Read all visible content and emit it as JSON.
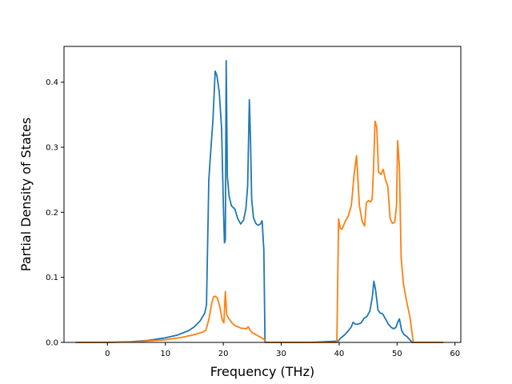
{
  "chart_data": {
    "type": "line",
    "title": "",
    "xlabel": "Frequency (THz)",
    "ylabel": "Partial Density of States",
    "xlim": [
      -7.5,
      61
    ],
    "ylim": [
      0,
      0.455
    ],
    "grid": false,
    "xticks": [
      0,
      10,
      20,
      30,
      40,
      50,
      60
    ],
    "yticks": [
      0.0,
      0.1,
      0.2,
      0.3,
      0.4
    ],
    "ytick_labels": [
      "0.0",
      "0.1",
      "0.2",
      "0.3",
      "0.4"
    ],
    "colors": {
      "series_1": "#1f77b4",
      "series_2": "#ff7f0e"
    },
    "series": [
      {
        "color": "#1f77b4",
        "x": [
          -5.5,
          0,
          4,
          7,
          10,
          12,
          14,
          15,
          16,
          16.8,
          17.1,
          17.5,
          17.8,
          18.2,
          18.6,
          18.9,
          19.3,
          19.7,
          20.0,
          20.2,
          20.35,
          20.5,
          20.7,
          21.0,
          21.4,
          22.0,
          22.5,
          23.0,
          23.5,
          23.9,
          24.2,
          24.5,
          24.7,
          24.9,
          25.2,
          25.6,
          26.0,
          26.4,
          26.7,
          27.0,
          27.2,
          30,
          35,
          39.8,
          40.3,
          41.0,
          41.6,
          42.1,
          42.4,
          42.8,
          43.3,
          43.8,
          44.3,
          44.8,
          45.3,
          45.7,
          46.0,
          46.3,
          46.7,
          47.1,
          47.5,
          48.0,
          48.5,
          49.0,
          49.4,
          49.8,
          50.1,
          50.4,
          50.8,
          51.2,
          51.7,
          52.2,
          52.6,
          58
        ],
        "y": [
          0.0,
          0.0,
          0.001,
          0.003,
          0.007,
          0.011,
          0.018,
          0.024,
          0.033,
          0.045,
          0.058,
          0.25,
          0.29,
          0.34,
          0.417,
          0.41,
          0.385,
          0.33,
          0.215,
          0.153,
          0.158,
          0.433,
          0.255,
          0.225,
          0.21,
          0.205,
          0.19,
          0.182,
          0.188,
          0.205,
          0.24,
          0.373,
          0.31,
          0.22,
          0.192,
          0.183,
          0.18,
          0.182,
          0.187,
          0.142,
          0.0,
          0.0,
          0.0,
          0.002,
          0.007,
          0.012,
          0.018,
          0.024,
          0.031,
          0.028,
          0.028,
          0.03,
          0.037,
          0.04,
          0.048,
          0.068,
          0.094,
          0.08,
          0.05,
          0.045,
          0.044,
          0.036,
          0.028,
          0.023,
          0.021,
          0.023,
          0.031,
          0.036,
          0.018,
          0.012,
          0.009,
          0.004,
          0.0,
          0.0
        ]
      },
      {
        "color": "#ff7f0e",
        "x": [
          -5.5,
          0,
          5,
          10,
          13,
          15,
          16.5,
          17.0,
          17.5,
          18.0,
          18.3,
          18.6,
          19.0,
          19.4,
          19.8,
          20.1,
          20.35,
          20.6,
          21.0,
          21.5,
          22,
          23,
          24.0,
          24.3,
          24.6,
          25.0,
          26,
          27,
          27.4,
          30,
          35,
          39.6,
          39.9,
          40.2,
          40.5,
          41.0,
          41.6,
          42.1,
          42.6,
          43.0,
          43.5,
          44.0,
          44.4,
          44.7,
          45.1,
          45.4,
          45.7,
          45.9,
          46.2,
          46.5,
          46.8,
          47.2,
          47.6,
          48.0,
          48.4,
          48.8,
          49.2,
          49.6,
          49.9,
          50.1,
          50.4,
          50.7,
          51.1,
          51.6,
          52.2,
          52.8,
          58
        ],
        "y": [
          0.0,
          0.0,
          0.001,
          0.004,
          0.008,
          0.012,
          0.016,
          0.019,
          0.035,
          0.06,
          0.07,
          0.071,
          0.068,
          0.055,
          0.035,
          0.03,
          0.078,
          0.042,
          0.036,
          0.03,
          0.026,
          0.022,
          0.021,
          0.024,
          0.019,
          0.015,
          0.01,
          0.005,
          0.0,
          0.0,
          0.0,
          0.0,
          0.19,
          0.175,
          0.174,
          0.185,
          0.195,
          0.21,
          0.26,
          0.287,
          0.21,
          0.185,
          0.179,
          0.215,
          0.218,
          0.216,
          0.22,
          0.26,
          0.34,
          0.33,
          0.262,
          0.258,
          0.266,
          0.25,
          0.24,
          0.19,
          0.183,
          0.185,
          0.21,
          0.31,
          0.27,
          0.13,
          0.09,
          0.065,
          0.04,
          0.0,
          0.0
        ]
      }
    ]
  }
}
